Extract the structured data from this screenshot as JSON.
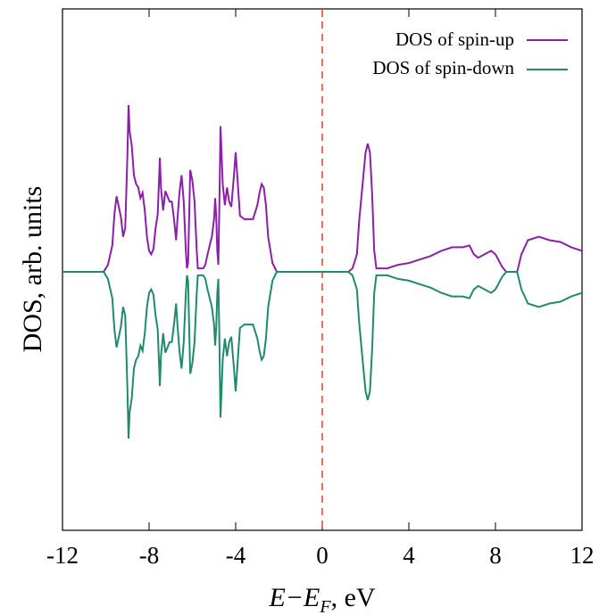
{
  "chart_data": {
    "type": "line",
    "title": "",
    "xlabel": {
      "main": "E−E",
      "sub": "F",
      "suffix": ", eV"
    },
    "ylabel": "DOS, arb. units",
    "xlim": [
      -12,
      12
    ],
    "ylim": [
      -1.0,
      1.0
    ],
    "xticks": [
      "-12",
      "-8",
      "-4",
      "0",
      "4",
      "8",
      "12"
    ],
    "xtick_values": [
      -12,
      -8,
      -4,
      0,
      4,
      8,
      12
    ],
    "grid": false,
    "legend_position": "top-right",
    "reference_line": {
      "x": 0,
      "style": "dashed",
      "color": "#e04a3a"
    },
    "series": [
      {
        "name": "DOS of spin-up",
        "color": "#8b1fa9",
        "points": [
          [
            -12.0,
            0.0
          ],
          [
            -10.1,
            0.0
          ],
          [
            -9.9,
            0.04
          ],
          [
            -9.7,
            0.15
          ],
          [
            -9.6,
            0.33
          ],
          [
            -9.5,
            0.43
          ],
          [
            -9.4,
            0.37
          ],
          [
            -9.3,
            0.31
          ],
          [
            -9.2,
            0.2
          ],
          [
            -9.1,
            0.25
          ],
          [
            -9.0,
            0.68
          ],
          [
            -8.95,
            0.95
          ],
          [
            -8.9,
            0.8
          ],
          [
            -8.8,
            0.72
          ],
          [
            -8.7,
            0.55
          ],
          [
            -8.6,
            0.5
          ],
          [
            -8.5,
            0.48
          ],
          [
            -8.4,
            0.42
          ],
          [
            -8.3,
            0.45
          ],
          [
            -8.2,
            0.35
          ],
          [
            -8.1,
            0.2
          ],
          [
            -8.0,
            0.12
          ],
          [
            -7.9,
            0.1
          ],
          [
            -7.8,
            0.13
          ],
          [
            -7.7,
            0.25
          ],
          [
            -7.6,
            0.33
          ],
          [
            -7.5,
            0.65
          ],
          [
            -7.45,
            0.48
          ],
          [
            -7.35,
            0.35
          ],
          [
            -7.25,
            0.46
          ],
          [
            -7.15,
            0.43
          ],
          [
            -7.05,
            0.4
          ],
          [
            -6.95,
            0.4
          ],
          [
            -6.85,
            0.3
          ],
          [
            -6.75,
            0.18
          ],
          [
            -6.7,
            0.28
          ],
          [
            -6.6,
            0.45
          ],
          [
            -6.5,
            0.55
          ],
          [
            -6.4,
            0.4
          ],
          [
            -6.3,
            0.12
          ],
          [
            -6.25,
            0.02
          ],
          [
            -6.2,
            0.05
          ],
          [
            -6.1,
            0.58
          ],
          [
            -6.0,
            0.52
          ],
          [
            -5.9,
            0.4
          ],
          [
            -5.8,
            0.12
          ],
          [
            -5.75,
            0.02
          ],
          [
            -5.5,
            0.02
          ],
          [
            -5.4,
            0.04
          ],
          [
            -5.3,
            0.1
          ],
          [
            -5.2,
            0.15
          ],
          [
            -5.1,
            0.2
          ],
          [
            -5.0,
            0.3
          ],
          [
            -4.95,
            0.42
          ],
          [
            -4.9,
            0.32
          ],
          [
            -4.85,
            0.12
          ],
          [
            -4.8,
            0.04
          ],
          [
            -4.75,
            0.4
          ],
          [
            -4.7,
            0.83
          ],
          [
            -4.6,
            0.5
          ],
          [
            -4.5,
            0.38
          ],
          [
            -4.4,
            0.48
          ],
          [
            -4.3,
            0.4
          ],
          [
            -4.2,
            0.37
          ],
          [
            -4.1,
            0.52
          ],
          [
            -4.0,
            0.68
          ],
          [
            -3.9,
            0.5
          ],
          [
            -3.8,
            0.32
          ],
          [
            -3.6,
            0.3
          ],
          [
            -3.4,
            0.3
          ],
          [
            -3.2,
            0.3
          ],
          [
            -3.0,
            0.38
          ],
          [
            -2.9,
            0.45
          ],
          [
            -2.8,
            0.5
          ],
          [
            -2.7,
            0.48
          ],
          [
            -2.6,
            0.38
          ],
          [
            -2.5,
            0.2
          ],
          [
            -2.3,
            0.05
          ],
          [
            -2.1,
            0.0
          ],
          [
            1.2,
            0.0
          ],
          [
            1.4,
            0.02
          ],
          [
            1.6,
            0.1
          ],
          [
            1.7,
            0.28
          ],
          [
            1.8,
            0.42
          ],
          [
            1.9,
            0.55
          ],
          [
            2.0,
            0.68
          ],
          [
            2.1,
            0.73
          ],
          [
            2.2,
            0.68
          ],
          [
            2.3,
            0.45
          ],
          [
            2.4,
            0.12
          ],
          [
            2.5,
            0.02
          ],
          [
            3.0,
            0.02
          ],
          [
            3.5,
            0.04
          ],
          [
            4.0,
            0.05
          ],
          [
            4.5,
            0.07
          ],
          [
            5.0,
            0.09
          ],
          [
            5.5,
            0.12
          ],
          [
            6.0,
            0.14
          ],
          [
            6.5,
            0.14
          ],
          [
            6.8,
            0.15
          ],
          [
            7.0,
            0.1
          ],
          [
            7.2,
            0.08
          ],
          [
            7.5,
            0.1
          ],
          [
            7.8,
            0.12
          ],
          [
            8.0,
            0.1
          ],
          [
            8.3,
            0.03
          ],
          [
            8.5,
            0.0
          ],
          [
            9.0,
            0.0
          ],
          [
            9.2,
            0.1
          ],
          [
            9.5,
            0.18
          ],
          [
            10.0,
            0.2
          ],
          [
            10.5,
            0.18
          ],
          [
            11.0,
            0.17
          ],
          [
            11.5,
            0.14
          ],
          [
            12.0,
            0.12
          ]
        ]
      },
      {
        "name": "DOS of spin-down",
        "color": "#218a6b",
        "points": [
          [
            -12.0,
            0.0
          ],
          [
            -10.1,
            0.0
          ],
          [
            -9.9,
            -0.04
          ],
          [
            -9.7,
            -0.15
          ],
          [
            -9.6,
            -0.33
          ],
          [
            -9.5,
            -0.43
          ],
          [
            -9.4,
            -0.37
          ],
          [
            -9.3,
            -0.31
          ],
          [
            -9.2,
            -0.2
          ],
          [
            -9.1,
            -0.25
          ],
          [
            -9.0,
            -0.68
          ],
          [
            -8.95,
            -0.95
          ],
          [
            -8.9,
            -0.8
          ],
          [
            -8.8,
            -0.72
          ],
          [
            -8.7,
            -0.55
          ],
          [
            -8.6,
            -0.5
          ],
          [
            -8.5,
            -0.48
          ],
          [
            -8.4,
            -0.42
          ],
          [
            -8.3,
            -0.45
          ],
          [
            -8.2,
            -0.35
          ],
          [
            -8.1,
            -0.2
          ],
          [
            -8.0,
            -0.12
          ],
          [
            -7.9,
            -0.1
          ],
          [
            -7.8,
            -0.13
          ],
          [
            -7.7,
            -0.25
          ],
          [
            -7.6,
            -0.33
          ],
          [
            -7.5,
            -0.65
          ],
          [
            -7.45,
            -0.48
          ],
          [
            -7.35,
            -0.35
          ],
          [
            -7.25,
            -0.46
          ],
          [
            -7.15,
            -0.43
          ],
          [
            -7.05,
            -0.4
          ],
          [
            -6.95,
            -0.4
          ],
          [
            -6.85,
            -0.3
          ],
          [
            -6.75,
            -0.18
          ],
          [
            -6.7,
            -0.28
          ],
          [
            -6.6,
            -0.45
          ],
          [
            -6.5,
            -0.55
          ],
          [
            -6.4,
            -0.4
          ],
          [
            -6.3,
            -0.12
          ],
          [
            -6.25,
            -0.02
          ],
          [
            -6.2,
            -0.05
          ],
          [
            -6.1,
            -0.58
          ],
          [
            -6.0,
            -0.52
          ],
          [
            -5.9,
            -0.4
          ],
          [
            -5.8,
            -0.12
          ],
          [
            -5.75,
            -0.02
          ],
          [
            -5.5,
            -0.02
          ],
          [
            -5.4,
            -0.04
          ],
          [
            -5.3,
            -0.1
          ],
          [
            -5.2,
            -0.15
          ],
          [
            -5.1,
            -0.2
          ],
          [
            -5.0,
            -0.3
          ],
          [
            -4.95,
            -0.42
          ],
          [
            -4.9,
            -0.32
          ],
          [
            -4.85,
            -0.12
          ],
          [
            -4.8,
            -0.04
          ],
          [
            -4.75,
            -0.4
          ],
          [
            -4.7,
            -0.83
          ],
          [
            -4.6,
            -0.5
          ],
          [
            -4.5,
            -0.38
          ],
          [
            -4.4,
            -0.48
          ],
          [
            -4.3,
            -0.4
          ],
          [
            -4.2,
            -0.37
          ],
          [
            -4.1,
            -0.52
          ],
          [
            -4.0,
            -0.68
          ],
          [
            -3.9,
            -0.5
          ],
          [
            -3.8,
            -0.32
          ],
          [
            -3.6,
            -0.3
          ],
          [
            -3.4,
            -0.3
          ],
          [
            -3.2,
            -0.3
          ],
          [
            -3.0,
            -0.38
          ],
          [
            -2.9,
            -0.45
          ],
          [
            -2.8,
            -0.5
          ],
          [
            -2.7,
            -0.48
          ],
          [
            -2.6,
            -0.38
          ],
          [
            -2.5,
            -0.2
          ],
          [
            -2.3,
            -0.05
          ],
          [
            -2.1,
            0.0
          ],
          [
            1.2,
            0.0
          ],
          [
            1.4,
            -0.02
          ],
          [
            1.6,
            -0.1
          ],
          [
            1.7,
            -0.28
          ],
          [
            1.8,
            -0.42
          ],
          [
            1.9,
            -0.55
          ],
          [
            2.0,
            -0.68
          ],
          [
            2.1,
            -0.73
          ],
          [
            2.2,
            -0.68
          ],
          [
            2.3,
            -0.45
          ],
          [
            2.4,
            -0.12
          ],
          [
            2.5,
            -0.02
          ],
          [
            3.0,
            -0.02
          ],
          [
            3.5,
            -0.04
          ],
          [
            4.0,
            -0.05
          ],
          [
            4.5,
            -0.07
          ],
          [
            5.0,
            -0.09
          ],
          [
            5.5,
            -0.12
          ],
          [
            6.0,
            -0.14
          ],
          [
            6.5,
            -0.14
          ],
          [
            6.8,
            -0.15
          ],
          [
            7.0,
            -0.1
          ],
          [
            7.2,
            -0.08
          ],
          [
            7.5,
            -0.1
          ],
          [
            7.8,
            -0.12
          ],
          [
            8.0,
            -0.1
          ],
          [
            8.3,
            -0.03
          ],
          [
            8.5,
            0.0
          ],
          [
            9.0,
            0.0
          ],
          [
            9.2,
            -0.1
          ],
          [
            9.5,
            -0.18
          ],
          [
            10.0,
            -0.2
          ],
          [
            10.5,
            -0.18
          ],
          [
            11.0,
            -0.17
          ],
          [
            11.5,
            -0.14
          ],
          [
            12.0,
            -0.12
          ]
        ]
      }
    ]
  }
}
